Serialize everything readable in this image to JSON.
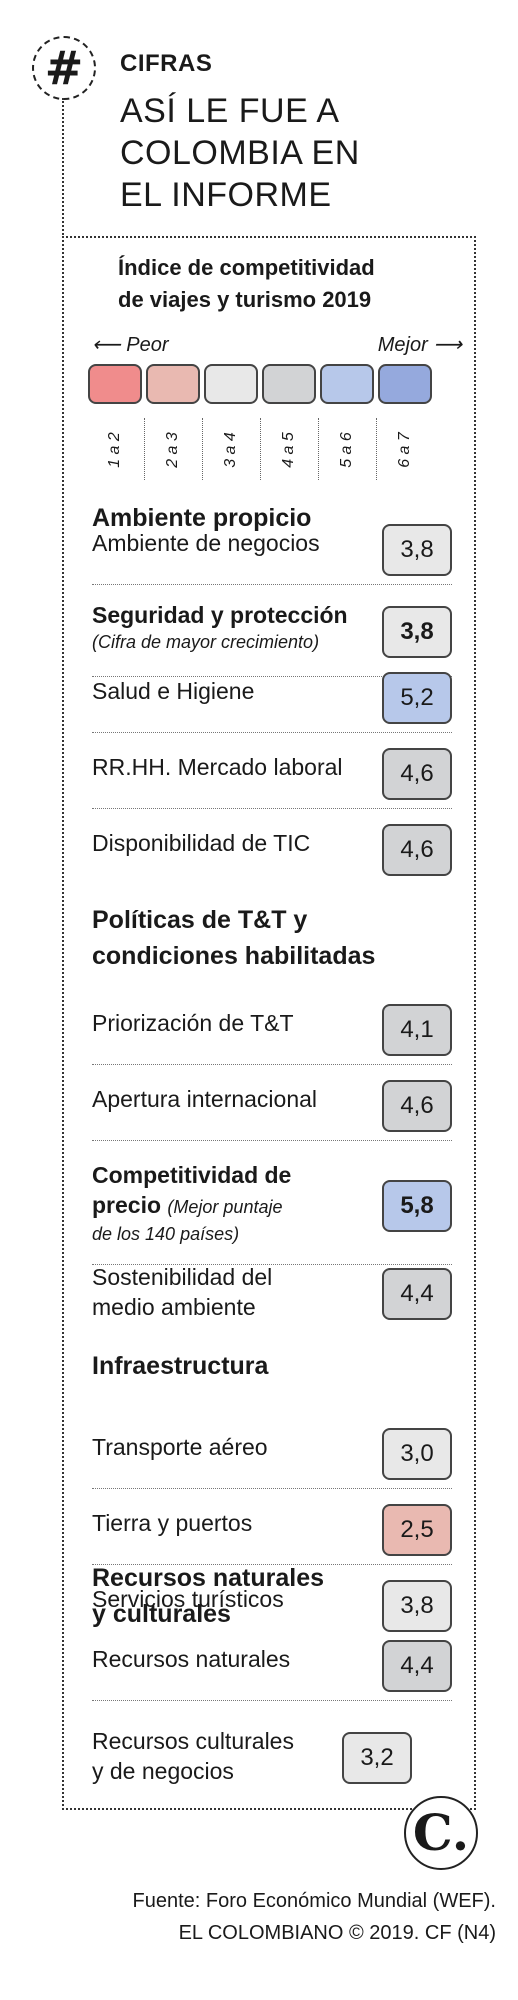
{
  "header": {
    "hash_symbol": "#",
    "kicker": "CIFRAS",
    "headline": [
      "ASÍ LE FUE A",
      "COLOMBIA EN",
      "EL INFORME"
    ]
  },
  "legend": {
    "title": [
      "Índice de competitividad",
      "de viajes y turismo 2019"
    ],
    "left_label": "⟵ Peor",
    "right_label": "Mejor ⟶",
    "ranges": [
      "1 a 2",
      "2 a 3",
      "3 a 4",
      "4 a 5",
      "5 a 6",
      "6 a 7"
    ],
    "colors": [
      "#f08c8c",
      "#e9b9b1",
      "#e8e8e8",
      "#d2d3d5",
      "#b7c8ea",
      "#95a9dd"
    ]
  },
  "sections": [
    {
      "title": [
        "Ambiente propicio"
      ],
      "rows": [
        {
          "label": [
            "Ambiente de negocios"
          ],
          "value": "3,8",
          "color": "#e8e8e8"
        },
        {
          "label": [
            "Seguridad y protección"
          ],
          "note": "(Cifra de mayor crecimiento)",
          "value": "3,8",
          "color": "#e8e8e8",
          "bold": true
        },
        {
          "label": [
            "Salud e Higiene"
          ],
          "value": "5,2",
          "color": "#b7c8ea"
        },
        {
          "label": [
            "RR.HH. Mercado laboral"
          ],
          "value": "4,6",
          "color": "#d2d3d5"
        },
        {
          "label": [
            "Disponibilidad de TIC"
          ],
          "value": "4,6",
          "color": "#d2d3d5"
        }
      ]
    },
    {
      "title": [
        "Políticas de T&T y",
        "condiciones habilitadas"
      ],
      "rows": [
        {
          "label": [
            "Priorización de T&T"
          ],
          "value": "4,1",
          "color": "#d2d3d5"
        },
        {
          "label": [
            "Apertura internacional"
          ],
          "value": "4,6",
          "color": "#d2d3d5"
        },
        {
          "label": [
            "Competitividad de",
            "precio"
          ],
          "note_inline": "(Mejor puntaje",
          "note": "de los 140 países)",
          "value": "5,8",
          "color": "#b7c8ea",
          "bold": true
        },
        {
          "label": [
            "Sostenibilidad del",
            "medio ambiente"
          ],
          "value": "4,4",
          "color": "#d2d3d5"
        }
      ]
    },
    {
      "title": [
        "Infraestructura"
      ],
      "rows": [
        {
          "label": [
            "Transporte aéreo"
          ],
          "value": "3,0",
          "color": "#e8e8e8"
        },
        {
          "label": [
            "Tierra y puertos"
          ],
          "value": "2,5",
          "color": "#e9b9b1"
        },
        {
          "label": [
            "Servicios turísticos"
          ],
          "value": "3,8",
          "color": "#e8e8e8"
        }
      ]
    },
    {
      "title": [
        "Recursos naturales",
        "y culturales"
      ],
      "rows": [
        {
          "label": [
            "Recursos naturales"
          ],
          "value": "4,4",
          "color": "#d2d3d5"
        },
        {
          "label": [
            "Recursos culturales",
            "y de negocios"
          ],
          "value": "3,2",
          "color": "#e8e8e8"
        }
      ]
    }
  ],
  "logo": "C.",
  "footer": [
    "Fuente: Foro Económico Mundial (WEF).",
    "EL COLOMBIANO © 2019. CF (N4)"
  ]
}
